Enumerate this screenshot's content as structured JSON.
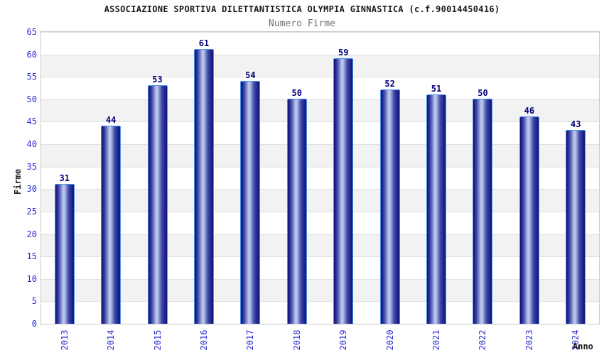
{
  "header": {
    "title": "ASSOCIAZIONE SPORTIVA DILETTANTISTICA OLYMPIA GINNASTICA (c.f.90014450416)",
    "subtitle": "Numero Firme"
  },
  "chart_data": {
    "type": "bar",
    "title": "Numero Firme",
    "categories": [
      "2013",
      "2014",
      "2015",
      "2016",
      "2017",
      "2018",
      "2019",
      "2020",
      "2021",
      "2022",
      "2023",
      "2024"
    ],
    "values": [
      31,
      44,
      53,
      61,
      54,
      50,
      59,
      52,
      51,
      50,
      46,
      43
    ],
    "xlabel": "Anno",
    "ylabel": "Firme",
    "ylim": [
      0,
      65
    ],
    "ytick_step": 5,
    "yticks": [
      0,
      5,
      10,
      15,
      20,
      25,
      30,
      35,
      40,
      45,
      50,
      55,
      60,
      65
    ],
    "grid": true,
    "legend": "none",
    "band_shading": "alternating horizontal stripes every 5 units, white and light gray",
    "bar_labels": "value shown above each bar",
    "colors": {
      "title": "#1b1b1b",
      "subtitle": "#6f6f6f",
      "tick_label": "#2b2bd0",
      "value_label": "#00007a",
      "axis_title": "#1b1b1b",
      "band_alt": "#f2f2f2",
      "gridline": "#e0e0e0",
      "plot_border": "#c9c9c9",
      "bar_border": "#4a94ee",
      "bar_dark": "#15157d",
      "bar_mid": "#3c49a5",
      "bar_light": "#bdc6ee"
    }
  }
}
